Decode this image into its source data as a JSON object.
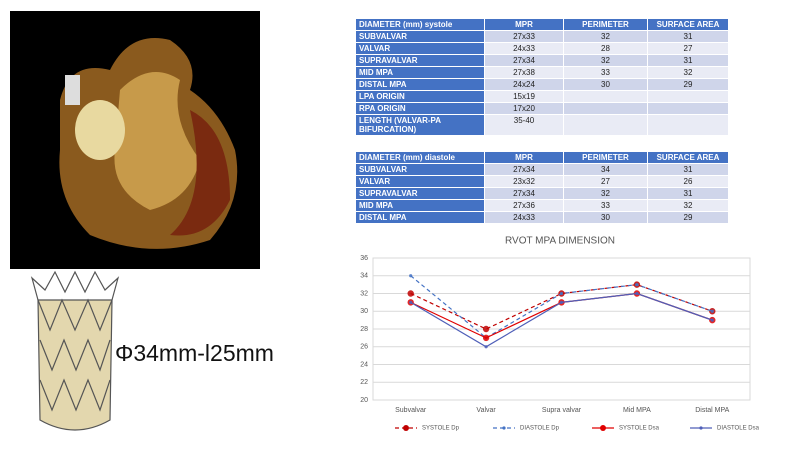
{
  "caption": "Φ34mm-l25mm",
  "systole_table": {
    "header": [
      "DIAMETER (mm) systole",
      "MPR",
      "PERIMETER",
      "SURFACE AREA"
    ],
    "rows": [
      [
        "SUBVALVAR",
        "27x33",
        32,
        31
      ],
      [
        "VALVAR",
        "24x33",
        28,
        27
      ],
      [
        "SUPRAVALVAR",
        "27x34",
        32,
        31
      ],
      [
        "MID MPA",
        "27x38",
        33,
        32
      ],
      [
        "DISTAL MPA",
        "24x24",
        30,
        29
      ],
      [
        "LPA ORIGIN",
        "15x19"
      ],
      [
        "RPA ORIGIN",
        "17x20"
      ],
      [
        "LENGTH (VALVAR-PA BIFURCATION)",
        "35-40"
      ]
    ]
  },
  "diastole_table": {
    "header": [
      "DIAMETER (mm) diastole",
      "MPR",
      "PERIMETER",
      "SURFACE AREA"
    ],
    "rows": [
      [
        "SUBVALVAR",
        "27x34",
        34,
        31
      ],
      [
        "VALVAR",
        "23x32",
        27,
        26
      ],
      [
        "SUPRAVALVAR",
        "27x34",
        32,
        31
      ],
      [
        "MID MPA",
        "27x36",
        33,
        32
      ],
      [
        "DISTAL MPA",
        "24x33",
        30,
        29
      ]
    ]
  },
  "chart_data": {
    "type": "line",
    "title": "RVOT MPA DIMENSION",
    "categories": [
      "Subvalvar",
      "Valvar",
      "Supra valvar",
      "Mid MPA",
      "Distal MPA"
    ],
    "series": [
      {
        "name": "SYSTOLE Dp",
        "color": "#c00000",
        "dash": true,
        "marker": "large",
        "values": [
          32,
          28,
          32,
          33,
          30
        ]
      },
      {
        "name": "DIASTOLE Dp",
        "color": "#4472c4",
        "dash": true,
        "marker": "small",
        "values": [
          34,
          27,
          32,
          33,
          30
        ]
      },
      {
        "name": "SYSTOLE Dsa",
        "color": "#e00000",
        "dash": false,
        "marker": "large",
        "values": [
          31,
          27,
          31,
          32,
          29
        ]
      },
      {
        "name": "DIASTOLE Dsa",
        "color": "#4f5fb8",
        "dash": false,
        "marker": "small",
        "values": [
          31,
          26,
          31,
          32,
          29
        ]
      }
    ],
    "ylim": [
      20,
      36
    ],
    "yticks": [
      20,
      22,
      24,
      26,
      28,
      30,
      32,
      34,
      36
    ],
    "grid": true
  }
}
